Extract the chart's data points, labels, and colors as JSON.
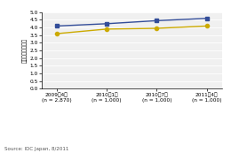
{
  "x_labels": [
    "2009年4月\n(n = 2,870)",
    "2010年1月\n(n = 1,000)",
    "2010年7月\n(n = 1,000)",
    "2011年4月\n(n = 1,000)"
  ],
  "x_positions": [
    0,
    1,
    2,
    3
  ],
  "desktop": [
    4.1,
    4.25,
    4.45,
    4.6
  ],
  "portable": [
    3.6,
    3.9,
    3.95,
    4.1
  ],
  "desktop_color": "#334d99",
  "portable_color": "#ccaa00",
  "ylabel": "（平均利用年数）",
  "ylim": [
    0.0,
    5.0
  ],
  "yticks": [
    0.0,
    0.5,
    1.0,
    1.5,
    2.0,
    2.5,
    3.0,
    3.5,
    4.0,
    4.5,
    5.0
  ],
  "source_text": "Source: IDC Japan, 8/2011",
  "bg_color": "#ffffff",
  "plot_bg_color": "#f0f0f0"
}
